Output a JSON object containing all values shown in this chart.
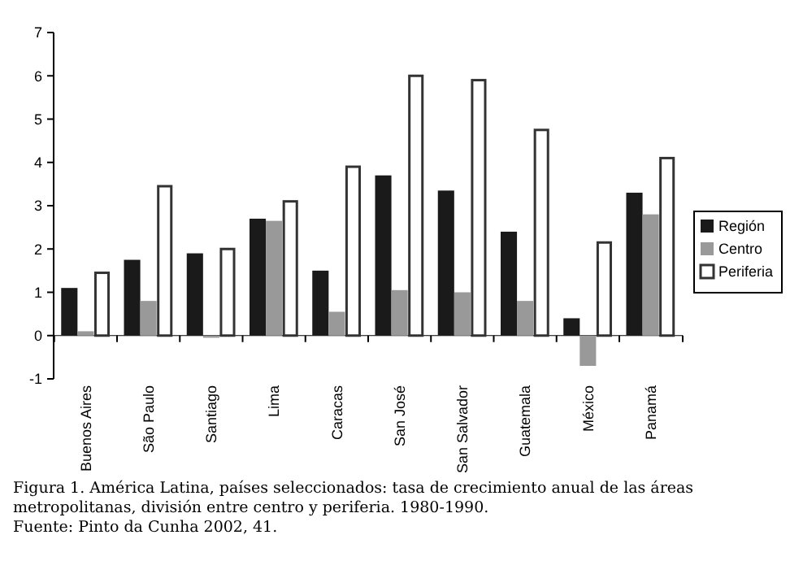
{
  "chart_data": {
    "type": "bar",
    "title": "Figura 1. América Latina, países seleccionados: tasa de crecimiento anual de las áreas metropolitanas, división entre centro y periferia. 1980-1990.",
    "annotations": [
      "Fuente: Pinto da Cunha 2002, 41."
    ],
    "categories": [
      "Buenos Aires",
      "São Paulo",
      "Santiago",
      "Lima",
      "Caracas",
      "San José",
      "San Salvador",
      "Guatemala",
      "México",
      "Panamá"
    ],
    "series": [
      {
        "name": "Región",
        "color": "#1a1a1a",
        "values": [
          1.1,
          1.75,
          1.9,
          2.7,
          1.5,
          3.7,
          3.35,
          2.4,
          0.4,
          3.3
        ]
      },
      {
        "name": "Centro",
        "color": "#999999",
        "values": [
          0.1,
          0.8,
          -0.05,
          2.65,
          0.55,
          1.05,
          1.0,
          0.8,
          -0.7,
          2.8
        ]
      },
      {
        "name": "Periferia",
        "color": "#ffffff",
        "values": [
          1.45,
          3.45,
          2.0,
          3.1,
          3.9,
          6.0,
          5.9,
          4.75,
          2.15,
          4.1
        ]
      }
    ],
    "ylim": [
      -1,
      7
    ],
    "yticks": [
      -1,
      0,
      1,
      2,
      3,
      4,
      5,
      6,
      7
    ],
    "legend": "right"
  }
}
